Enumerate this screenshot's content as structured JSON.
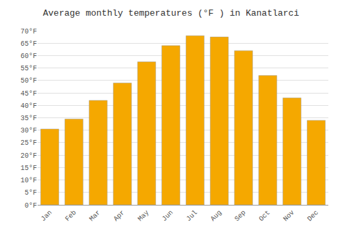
{
  "chart_data": {
    "type": "bar",
    "title": "Average monthly temperatures (°F ) in Kanatlarci",
    "categories": [
      "Jan",
      "Feb",
      "Mar",
      "Apr",
      "May",
      "Jun",
      "Jul",
      "Aug",
      "Sep",
      "Oct",
      "Nov",
      "Dec"
    ],
    "values": [
      30.5,
      34.5,
      42.0,
      49.0,
      57.5,
      64.0,
      68.0,
      67.5,
      62.0,
      52.0,
      43.0,
      34.0
    ],
    "color": "#F5A800",
    "ylim": [
      0,
      70
    ],
    "yticks": [
      {
        "value": 0,
        "label": "0°F"
      },
      {
        "value": 5,
        "label": "5°F"
      },
      {
        "value": 10,
        "label": "10°F"
      },
      {
        "value": 15,
        "label": "15°F"
      },
      {
        "value": 20,
        "label": "20°F"
      },
      {
        "value": 25,
        "label": "25°F"
      },
      {
        "value": 30,
        "label": "30°F"
      },
      {
        "value": 35,
        "label": "35°F"
      },
      {
        "value": 40,
        "label": "40°F"
      },
      {
        "value": 45,
        "label": "45°F"
      },
      {
        "value": 50,
        "label": "50°F"
      },
      {
        "value": 55,
        "label": "55°F"
      },
      {
        "value": 60,
        "label": "60°F"
      },
      {
        "value": 65,
        "label": "65°F"
      },
      {
        "value": 70,
        "label": "70°F"
      }
    ],
    "grid": true
  }
}
